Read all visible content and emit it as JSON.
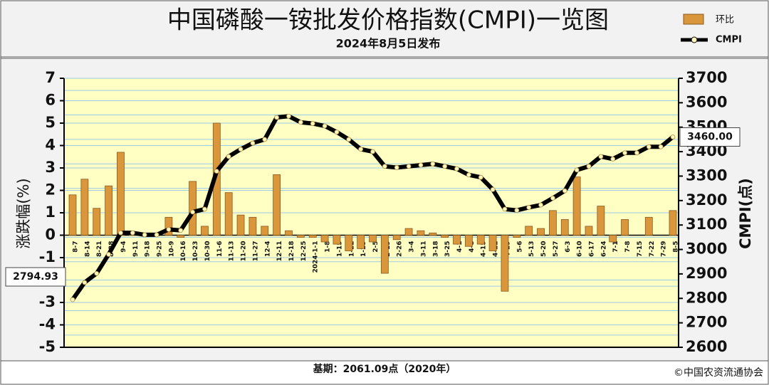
{
  "chart_data": {
    "type": "bar-line",
    "title": "中国磷酸一铵批发价格指数(CMPI)一览图",
    "subtitle": "2024年8月5日发布",
    "y_label": "涨跌幅(%)",
    "y2_label": "CMPI(点)",
    "footnote": "基期：2061.09点（2020年）",
    "source": "©中国农资流通协会",
    "categories": [
      "8-7",
      "8-14",
      "8-21",
      "8-28",
      "9-4",
      "9-11",
      "9-18",
      "9-25",
      "10-9",
      "10-16",
      "10-23",
      "10-30",
      "11-6",
      "11-13",
      "11-20",
      "11-27",
      "12-4",
      "12-11",
      "12-18",
      "12-25",
      "2024-1-1",
      "1-8",
      "1-15",
      "1-22",
      "1-29",
      "2-5",
      "2-19",
      "2-26",
      "3-4",
      "3-11",
      "3-18",
      "3-25",
      "4-1",
      "4-8",
      "4-15",
      "4-22",
      "4-29",
      "5-6",
      "5-13",
      "5-20",
      "5-27",
      "6-3",
      "6-10",
      "6-17",
      "6-24",
      "7-1",
      "7-8",
      "7-15",
      "7-22",
      "7-29",
      "8-5"
    ],
    "series": [
      {
        "name": "环比",
        "type": "bar",
        "color": "#d9963a",
        "values": [
          1.8,
          2.5,
          1.2,
          2.2,
          3.7,
          0.1,
          0,
          0,
          0.8,
          -0.1,
          2.4,
          0.4,
          5.0,
          1.9,
          0.9,
          0.8,
          0.4,
          2.7,
          0.2,
          -0.1,
          -0.1,
          -0.3,
          -0.4,
          -0.7,
          -0.6,
          -0.3,
          -1.7,
          -0.2,
          0.3,
          0.2,
          0.1,
          -0.1,
          -0.4,
          -0.5,
          -0.4,
          -0.7,
          -2.5,
          -0.1,
          0.4,
          0.3,
          1.1,
          0.7,
          2.6,
          0.4,
          1.3,
          -0.3,
          0.7,
          0,
          0.8,
          0,
          1.1
        ]
      },
      {
        "name": "CMPI",
        "type": "line",
        "axis": "y2",
        "color": "#000000",
        "values": [
          2794.93,
          2865,
          2902,
          2980,
          3068,
          3068,
          3060,
          3060,
          3082,
          3078,
          3153,
          3165,
          3320,
          3380,
          3410,
          3435,
          3450,
          3540,
          3545,
          3520,
          3515,
          3505,
          3480,
          3450,
          3410,
          3400,
          3340,
          3335,
          3340,
          3345,
          3350,
          3340,
          3330,
          3305,
          3295,
          3245,
          3165,
          3160,
          3172,
          3182,
          3210,
          3240,
          3325,
          3340,
          3380,
          3370,
          3395,
          3395,
          3420,
          3420,
          3460
        ],
        "value_labels": [
          "2794.93",
          null,
          null,
          null,
          null,
          null,
          null,
          null,
          null,
          null,
          null,
          null,
          null,
          null,
          null,
          null,
          null,
          null,
          null,
          null,
          null,
          null,
          null,
          null,
          null,
          null,
          null,
          null,
          null,
          null,
          null,
          null,
          null,
          null,
          null,
          null,
          null,
          null,
          null,
          null,
          null,
          null,
          null,
          null,
          null,
          null,
          null,
          null,
          null,
          null,
          "3460.00"
        ]
      }
    ],
    "ylim": [
      -5,
      7
    ],
    "yticks": [
      -5,
      -4,
      -3,
      -2,
      -1,
      0,
      1,
      2,
      3,
      4,
      5,
      6,
      7
    ],
    "y2lim": [
      2600,
      3700
    ],
    "y2ticks": [
      2600,
      2700,
      2800,
      2900,
      3000,
      3100,
      3200,
      3300,
      3400,
      3500,
      3600,
      3700
    ],
    "grid": true
  }
}
